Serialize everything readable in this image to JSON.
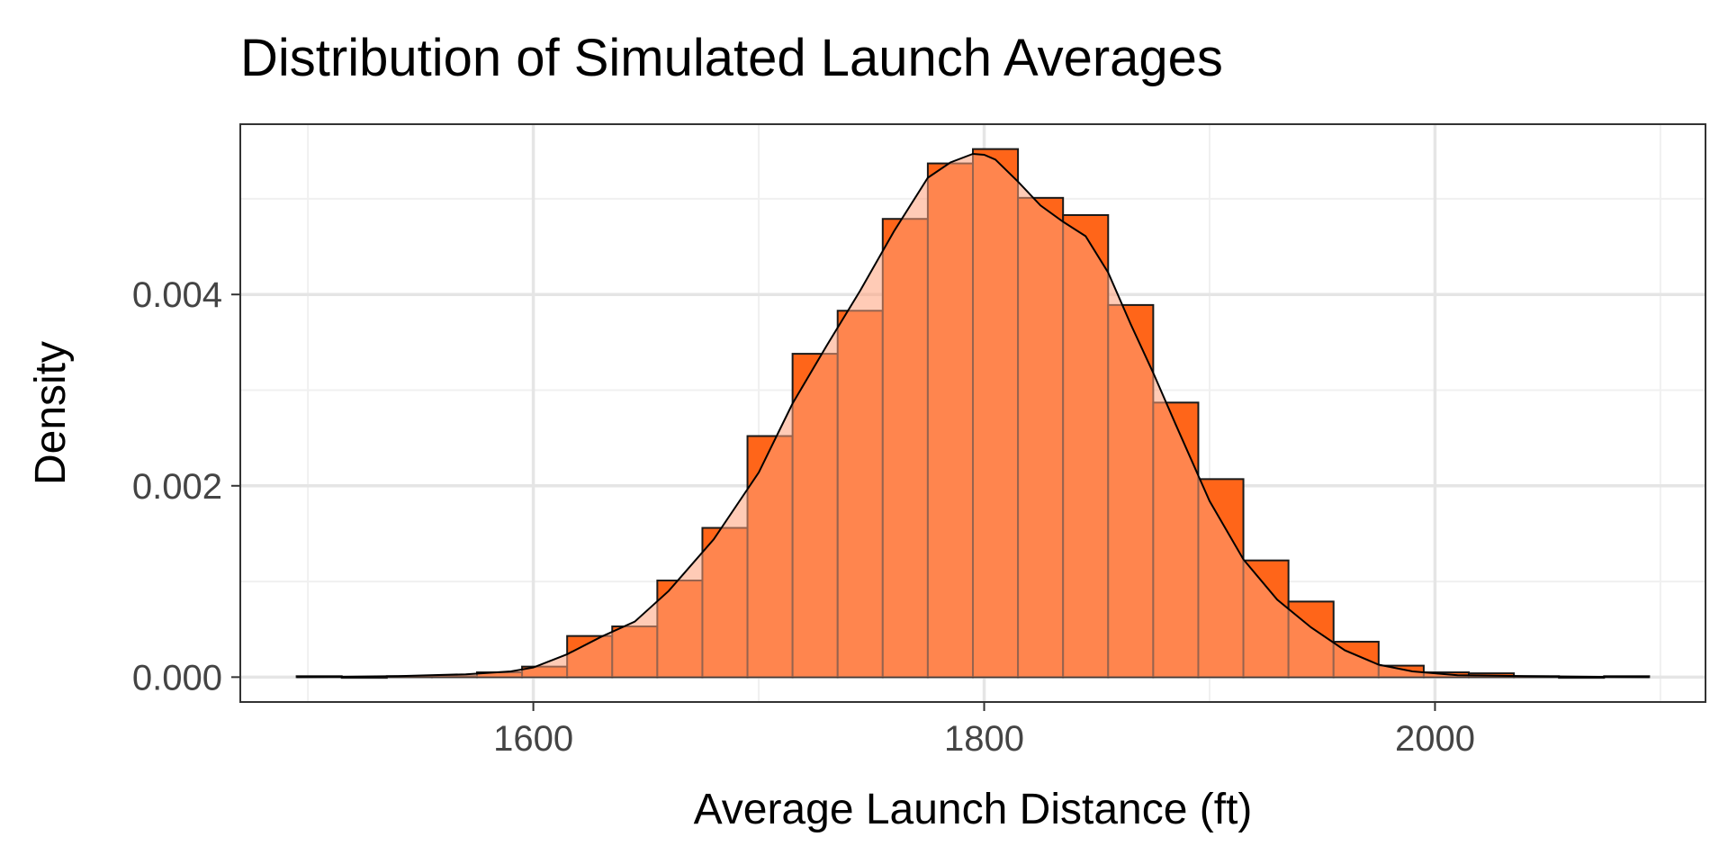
{
  "chart_data": {
    "type": "bar",
    "title": "Distribution of Simulated Launch Averages",
    "xlabel": "Average Launch Distance (ft)",
    "ylabel": "Density",
    "xlim": [
      1470,
      2120
    ],
    "ylim": [
      -0.00026,
      0.00578
    ],
    "x_ticks": [
      1600,
      1800,
      2000
    ],
    "y_ticks": [
      0.0,
      0.002,
      0.004
    ],
    "x_tick_labels": [
      "1600",
      "1800",
      "2000"
    ],
    "y_tick_labels": [
      "0.000",
      "0.002",
      "0.004"
    ],
    "grid": true,
    "bin_width": 20,
    "bins": [
      {
        "start": 1495,
        "value": 1e-05
      },
      {
        "start": 1515,
        "value": 0.0
      },
      {
        "start": 1535,
        "value": 1e-05
      },
      {
        "start": 1555,
        "value": 1e-05
      },
      {
        "start": 1575,
        "value": 5e-05
      },
      {
        "start": 1595,
        "value": 0.00011
      },
      {
        "start": 1615,
        "value": 0.00043
      },
      {
        "start": 1635,
        "value": 0.00053
      },
      {
        "start": 1655,
        "value": 0.00101
      },
      {
        "start": 1675,
        "value": 0.00156
      },
      {
        "start": 1695,
        "value": 0.00252
      },
      {
        "start": 1715,
        "value": 0.00338
      },
      {
        "start": 1735,
        "value": 0.00383
      },
      {
        "start": 1755,
        "value": 0.00479
      },
      {
        "start": 1775,
        "value": 0.00537
      },
      {
        "start": 1795,
        "value": 0.00552
      },
      {
        "start": 1815,
        "value": 0.00501
      },
      {
        "start": 1835,
        "value": 0.00483
      },
      {
        "start": 1855,
        "value": 0.00389
      },
      {
        "start": 1875,
        "value": 0.00287
      },
      {
        "start": 1895,
        "value": 0.00207
      },
      {
        "start": 1915,
        "value": 0.00122
      },
      {
        "start": 1935,
        "value": 0.00079
      },
      {
        "start": 1955,
        "value": 0.00037
      },
      {
        "start": 1975,
        "value": 0.00012
      },
      {
        "start": 1995,
        "value": 5e-05
      },
      {
        "start": 2015,
        "value": 4e-05
      },
      {
        "start": 2035,
        "value": 1e-05
      },
      {
        "start": 2055,
        "value": 0.0
      },
      {
        "start": 2075,
        "value": 1e-05
      }
    ],
    "density_curve": {
      "x": [
        1495,
        1540,
        1570,
        1590,
        1600,
        1615,
        1630,
        1645,
        1660,
        1680,
        1700,
        1715,
        1730,
        1745,
        1760,
        1775,
        1785,
        1795,
        1800,
        1805,
        1815,
        1825,
        1835,
        1845,
        1855,
        1865,
        1875,
        1885,
        1900,
        1915,
        1930,
        1945,
        1960,
        1975,
        1990,
        2010,
        2040,
        2095
      ],
      "y": [
        0.0,
        1e-05,
        3e-05,
        6e-05,
        0.0001,
        0.00024,
        0.00042,
        0.00058,
        0.0009,
        0.00144,
        0.00214,
        0.00286,
        0.00346,
        0.00404,
        0.00466,
        0.00522,
        0.00538,
        0.00547,
        0.00546,
        0.00541,
        0.00518,
        0.00493,
        0.00476,
        0.00461,
        0.00423,
        0.00369,
        0.00318,
        0.00264,
        0.00184,
        0.00123,
        0.00081,
        0.00052,
        0.00028,
        0.00013,
        6e-05,
        2e-05,
        1e-05,
        0.0
      ]
    },
    "colors": {
      "bar_fill": "#ff6519",
      "bar_outline": "#1a1a1a",
      "density_fill": "#ffa17a",
      "density_line": "#000000",
      "grid_major": "#e5e5e5",
      "grid_minor": "#f0f0f0",
      "panel_border": "#333333",
      "tick_text": "#444444"
    }
  }
}
